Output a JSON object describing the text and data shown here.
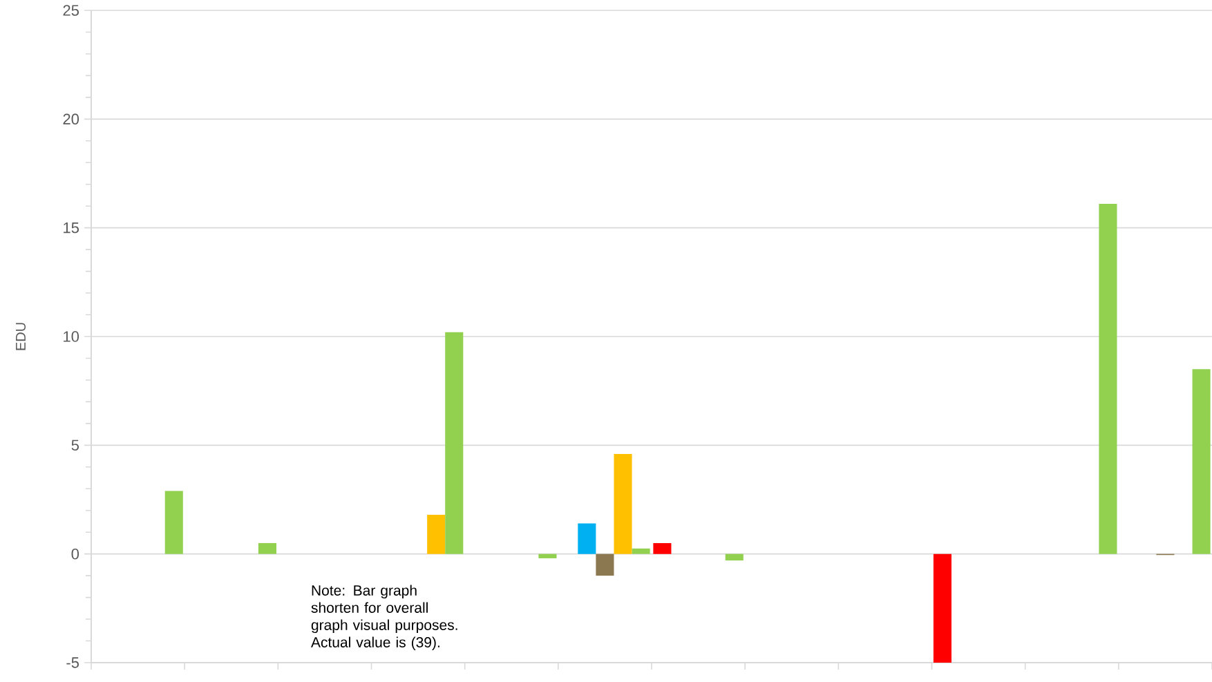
{
  "chart_data": {
    "type": "bar",
    "ylabel": "EDU",
    "categories": [
      null,
      null,
      null,
      null,
      null,
      null,
      null,
      null,
      null,
      null,
      null,
      null
    ],
    "series": [
      {
        "color": "#ff0000",
        "values": [
          null,
          null,
          null,
          null,
          null,
          null,
          0.5,
          null,
          null,
          -5,
          null,
          null
        ]
      },
      {
        "color": "#00b0f0",
        "values": [
          null,
          null,
          null,
          null,
          null,
          1.4,
          null,
          null,
          null,
          null,
          null,
          null
        ]
      },
      {
        "color": "#8b7750",
        "values": [
          null,
          null,
          null,
          null,
          null,
          -1.0,
          null,
          null,
          null,
          null,
          null,
          -0.05
        ]
      },
      {
        "color": "#ffc000",
        "values": [
          null,
          null,
          null,
          1.8,
          null,
          4.6,
          null,
          null,
          null,
          null,
          null,
          null
        ]
      },
      {
        "color": "#92d050",
        "values": [
          2.9,
          0.5,
          null,
          10.2,
          -0.2,
          0.25,
          -0.3,
          null,
          null,
          null,
          16.1,
          8.5
        ]
      }
    ],
    "ylim": [
      -5,
      25
    ],
    "yticks": [
      -5,
      0,
      5,
      10,
      15,
      20,
      25
    ],
    "grid": "y",
    "annotations": [
      "Note: Bar graph shorten for overall graph visual purposes. Actual value is (39)."
    ]
  }
}
